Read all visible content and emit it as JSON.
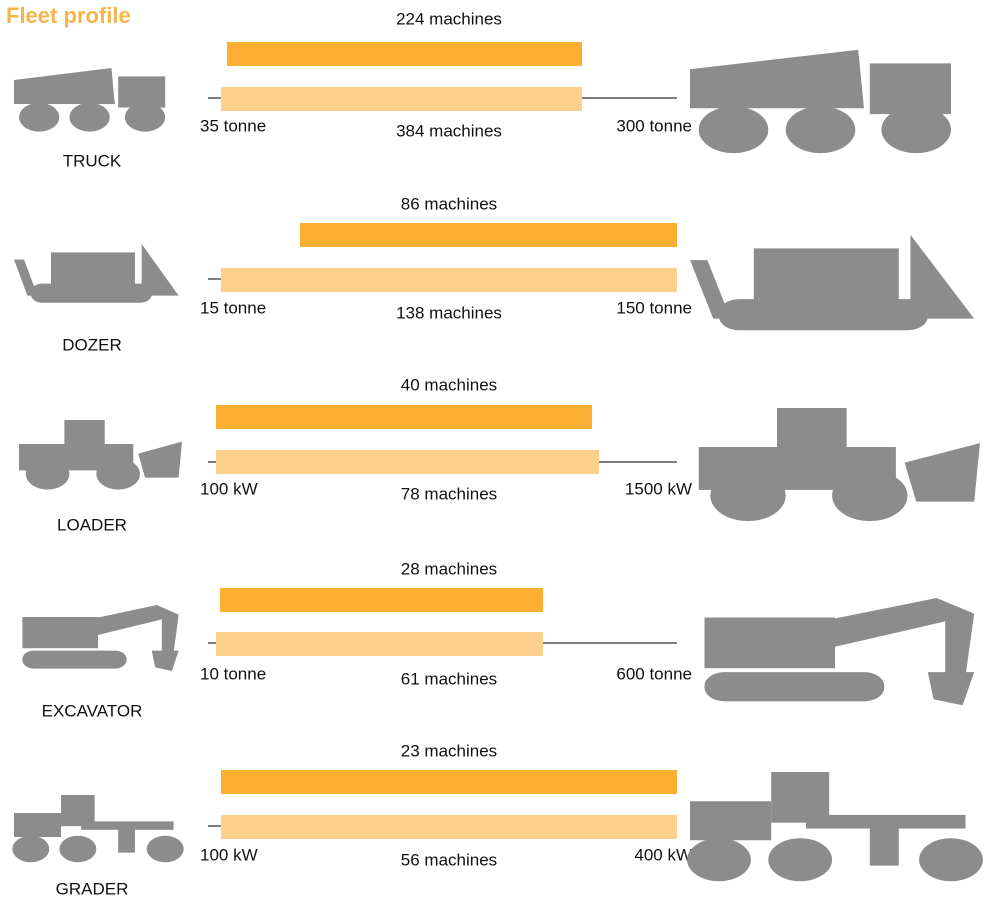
{
  "title": "Fleet profile",
  "rows": [
    {
      "label": "TRUCK",
      "top_label": "224 machines",
      "bottom_label": "384 machines",
      "min": "35 tonne",
      "max": "300 tonne"
    },
    {
      "label": "DOZER",
      "top_label": "86 machines",
      "bottom_label": "138 machines",
      "min": "15 tonne",
      "max": "150 tonne"
    },
    {
      "label": "LOADER",
      "top_label": "40 machines",
      "bottom_label": "78 machines",
      "min": "100 kW",
      "max": "1500 kW"
    },
    {
      "label": "EXCAVATOR",
      "top_label": "28 machines",
      "bottom_label": "61 machines",
      "min": "10 tonne",
      "max": "600 tonne"
    },
    {
      "label": "GRADER",
      "top_label": "23 machines",
      "bottom_label": "56 machines",
      "min": "100 kW",
      "max": "400 kW"
    }
  ]
}
